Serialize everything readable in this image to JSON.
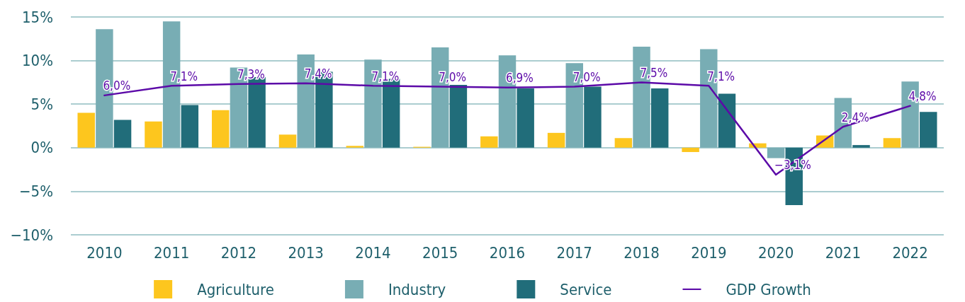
{
  "chart_data": {
    "type": "bar",
    "categories": [
      "2010",
      "2011",
      "2012",
      "2013",
      "2014",
      "2015",
      "2016",
      "2017",
      "2018",
      "2019",
      "2020",
      "2021",
      "2022"
    ],
    "series": [
      {
        "name": "Agriculture",
        "color": "#fdc61e",
        "values": [
          4.0,
          3.0,
          4.3,
          1.5,
          0.2,
          0.1,
          1.3,
          1.7,
          1.1,
          -0.5,
          0.5,
          1.4,
          1.1
        ]
      },
      {
        "name": "Industry",
        "color": "#78adb4",
        "values": [
          13.6,
          14.5,
          9.2,
          10.7,
          10.1,
          11.5,
          10.6,
          9.7,
          11.6,
          11.3,
          -1.2,
          5.7,
          7.6
        ]
      },
      {
        "name": "Service",
        "color": "#216d7a",
        "values": [
          3.2,
          4.9,
          8.1,
          8.7,
          7.9,
          7.2,
          6.8,
          7.0,
          6.8,
          6.2,
          -6.6,
          0.3,
          4.1
        ]
      },
      {
        "name": "GDP Growth",
        "type": "line",
        "color": "#5c0aa8",
        "values": [
          6.0,
          7.1,
          7.3,
          7.4,
          7.1,
          7.0,
          6.9,
          7.0,
          7.5,
          7.1,
          -3.1,
          2.4,
          4.8
        ],
        "value_labels": [
          "6,0%",
          "7,1%",
          "7,3%",
          "7,4%",
          "7,1%",
          "7,0%",
          "6,9%",
          "7,0%",
          "7,5%",
          "7,1%",
          "−3,1%",
          "2,4%",
          "4,8%"
        ]
      }
    ],
    "ylim": [
      -10,
      15
    ],
    "yticks": [
      {
        "value": -10,
        "label": "−10%"
      },
      {
        "value": -5,
        "label": "−5%"
      },
      {
        "value": 0,
        "label": "0%"
      },
      {
        "value": 5,
        "label": "5%"
      },
      {
        "value": 10,
        "label": "10%"
      },
      {
        "value": 15,
        "label": "15%"
      }
    ],
    "grid": "y",
    "legend": "bottom",
    "marker": "none",
    "line_style": "solid"
  }
}
